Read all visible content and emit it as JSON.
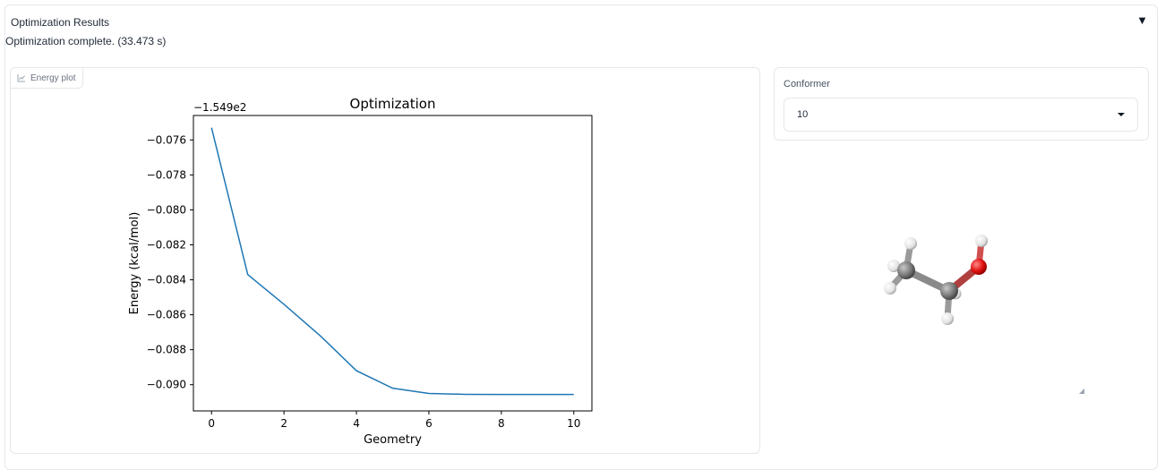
{
  "accordion": {
    "title": "Optimization Results",
    "toggle_icon": "triangle-down-icon"
  },
  "status": {
    "message": "Optimization complete. (33.473 s)"
  },
  "plot_panel": {
    "label": "Energy plot",
    "label_icon": "line-chart-icon"
  },
  "chart_data": {
    "type": "line",
    "title": "Optimization",
    "xlabel": "Geometry",
    "ylabel": "Energy (kcal/mol)",
    "offset_label": "−1.549e2",
    "x": [
      0,
      1,
      2,
      3,
      4,
      5,
      6,
      7,
      8,
      9,
      10
    ],
    "series": [
      {
        "values": [
          -0.0753,
          -0.0837,
          -0.0854,
          -0.0872,
          -0.0892,
          -0.0902,
          -0.0905,
          -0.09055,
          -0.09056,
          -0.09056,
          -0.09056
        ],
        "color": "#1f77b4"
      }
    ],
    "xlim": [
      -0.5,
      10.5
    ],
    "ylim": [
      -0.0915,
      -0.0746
    ],
    "xticks": [
      0,
      2,
      4,
      6,
      8,
      10
    ],
    "xtick_labels": [
      "0",
      "2",
      "4",
      "6",
      "8",
      "10"
    ],
    "yticks": [
      -0.076,
      -0.078,
      -0.08,
      -0.082,
      -0.084,
      -0.086,
      -0.088,
      -0.09
    ],
    "ytick_labels": [
      "−0.076",
      "−0.078",
      "−0.080",
      "−0.082",
      "−0.084",
      "−0.086",
      "−0.088",
      "−0.090"
    ],
    "grid": false,
    "legend": false
  },
  "conformer": {
    "label": "Conformer",
    "selected": "10",
    "dropdown_icon": "chevron-down-icon"
  },
  "molecule_viewer": {
    "molecule": "ethanol",
    "colors": {
      "carbon": "#7a7a7a",
      "oxygen": "#e01010",
      "hydrogen": "#e8e8e8"
    }
  }
}
